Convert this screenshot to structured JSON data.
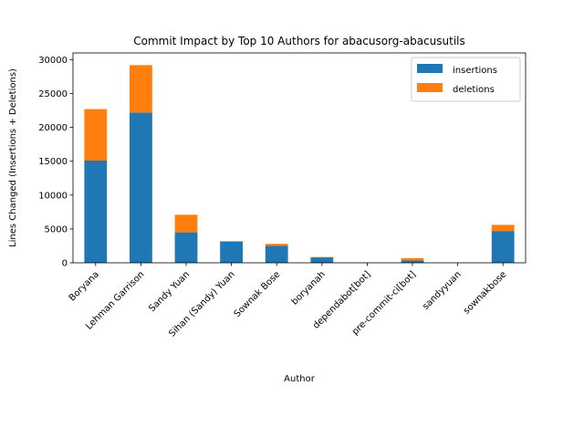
{
  "chart_data": {
    "type": "bar",
    "stacked": true,
    "title": "Commit Impact by Top 10 Authors for abacusorg-abacusutils",
    "xlabel": "Author",
    "ylabel": "Lines Changed (Insertions + Deletions)",
    "ylim": [
      0,
      31000
    ],
    "yticks": [
      0,
      5000,
      10000,
      15000,
      20000,
      25000,
      30000
    ],
    "grid": false,
    "legend_position": "top-right",
    "categories": [
      "Boryana",
      "Lehman Garrison",
      "Sandy Yuan",
      "Sihan (Sandy) Yuan",
      "Sownak Bose",
      "boryanah",
      "dependabot[bot]",
      "pre-commit-ci[bot]",
      "sandyyuan",
      "sownakbose"
    ],
    "series": [
      {
        "name": "insertions",
        "color": "#1f77b4",
        "values": [
          15100,
          22200,
          4500,
          3100,
          2500,
          800,
          5,
          350,
          5,
          4700
        ]
      },
      {
        "name": "deletions",
        "color": "#ff7f0e",
        "values": [
          7600,
          7000,
          2600,
          100,
          300,
          50,
          5,
          350,
          5,
          900
        ]
      }
    ]
  }
}
